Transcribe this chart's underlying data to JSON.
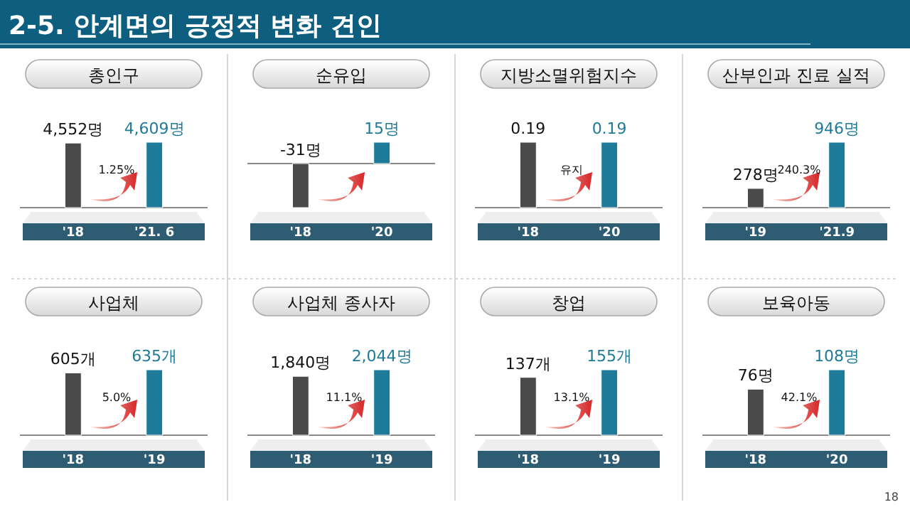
{
  "chart_data": [
    {
      "type": "other",
      "title": "2-5. 안계면의 긍정적 변화 견인",
      "annotations": [
        "18"
      ]
    },
    {
      "type": "bar",
      "title": "총인구",
      "categories": [
        "'18",
        "'21. 6"
      ],
      "values": [
        4552,
        4609
      ],
      "value_labels": [
        "4,552명",
        "4,609명"
      ],
      "colors": [
        "#4a4a4a",
        "#1d7a99"
      ],
      "annotations": [
        "1.25%"
      ]
    },
    {
      "type": "bar",
      "title": "순유입",
      "categories": [
        "'18",
        "'20"
      ],
      "values": [
        -31,
        15
      ],
      "value_labels": [
        "-31명",
        "15명"
      ],
      "colors": [
        "#4a4a4a",
        "#1d7a99"
      ]
    },
    {
      "type": "bar",
      "title": "지방소멸위험지수",
      "categories": [
        "'18",
        "'20"
      ],
      "values": [
        0.19,
        0.19
      ],
      "value_labels": [
        "0.19",
        "0.19"
      ],
      "colors": [
        "#4a4a4a",
        "#1d7a99"
      ],
      "annotations": [
        "유지"
      ]
    },
    {
      "type": "bar",
      "title": "산부인과 진료 실적",
      "categories": [
        "'19",
        "'21.9"
      ],
      "values": [
        278,
        946
      ],
      "value_labels": [
        "278명",
        "946명"
      ],
      "colors": [
        "#4a4a4a",
        "#1d7a99"
      ],
      "annotations": [
        "240.3%"
      ]
    },
    {
      "type": "bar",
      "title": "사업체",
      "categories": [
        "'18",
        "'19"
      ],
      "values": [
        605,
        635
      ],
      "value_labels": [
        "605개",
        "635개"
      ],
      "colors": [
        "#4a4a4a",
        "#1d7a99"
      ],
      "annotations": [
        "5.0%"
      ]
    },
    {
      "type": "bar",
      "title": "사업체 종사자",
      "categories": [
        "'18",
        "'19"
      ],
      "values": [
        1840,
        2044
      ],
      "value_labels": [
        "1,840명",
        "2,044명"
      ],
      "colors": [
        "#4a4a4a",
        "#1d7a99"
      ],
      "annotations": [
        "11.1%"
      ]
    },
    {
      "type": "bar",
      "title": "창업",
      "categories": [
        "'18",
        "'19"
      ],
      "values": [
        137,
        155
      ],
      "value_labels": [
        "137개",
        "155개"
      ],
      "colors": [
        "#4a4a4a",
        "#1d7a99"
      ],
      "annotations": [
        "13.1%"
      ]
    },
    {
      "type": "bar",
      "title": "보육아동",
      "categories": [
        "'18",
        "'20"
      ],
      "values": [
        76,
        108
      ],
      "value_labels": [
        "76명",
        "108명"
      ],
      "colors": [
        "#4a4a4a",
        "#1d7a99"
      ],
      "annotations": [
        "42.1%"
      ]
    }
  ]
}
